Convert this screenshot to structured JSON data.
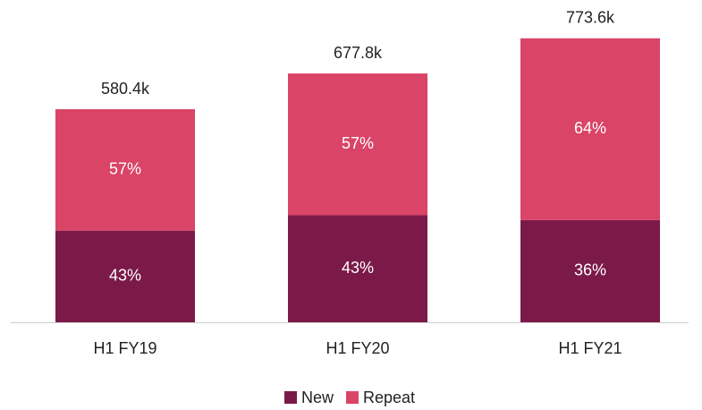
{
  "chart_data": {
    "type": "stacked-bar",
    "categories": [
      "H1 FY19",
      "H1 FY20",
      "H1 FY21"
    ],
    "totals": {
      "values": [
        580400,
        677800,
        773600
      ],
      "value_labels": [
        "580.4k",
        "677.8k",
        "773.6k"
      ]
    },
    "series": [
      {
        "name": "New",
        "color": "#7b1a48",
        "values": [
          43,
          43,
          36
        ],
        "value_labels": [
          "43%",
          "43%",
          "36%"
        ]
      },
      {
        "name": "Repeat",
        "color": "#d94467",
        "values": [
          57,
          57,
          64
        ],
        "value_labels": [
          "57%",
          "57%",
          "64%"
        ]
      }
    ],
    "legend": "bottom"
  }
}
